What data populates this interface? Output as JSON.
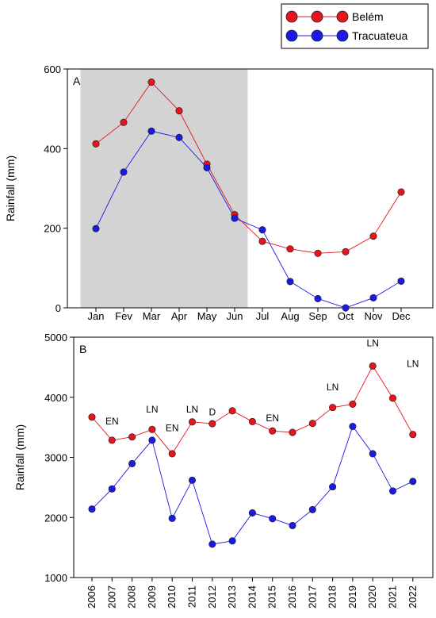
{
  "colors": {
    "belem": "#e8141c",
    "tracuateua": "#1a1ae6",
    "shade": "#d3d3d3"
  },
  "legend": {
    "entries": [
      {
        "name": "Belém",
        "color": "#e8141c"
      },
      {
        "name": "Tracuateua",
        "color": "#1a1ae6"
      }
    ]
  },
  "chart_data": [
    {
      "type": "line",
      "panel_label": "A",
      "ylabel": "Rainfall (mm)",
      "ylim": [
        0,
        600
      ],
      "yticks": [
        0,
        200,
        400,
        600
      ],
      "categories": [
        "Jan",
        "Fev",
        "Mar",
        "Apr",
        "May",
        "Jun",
        "Jul",
        "Aug",
        "Sep",
        "Oct",
        "Nov",
        "Dec"
      ],
      "shaded_range": [
        "Jan",
        "Jun"
      ],
      "series": [
        {
          "name": "Belém",
          "color": "#e8141c",
          "values": [
            412,
            466,
            567,
            495,
            361,
            234,
            167,
            148,
            137,
            141,
            180,
            291
          ]
        },
        {
          "name": "Tracuateua",
          "color": "#1a1ae6",
          "values": [
            199,
            341,
            444,
            428,
            352,
            225,
            196,
            66,
            23,
            0,
            25,
            67
          ]
        }
      ]
    },
    {
      "type": "line",
      "panel_label": "B",
      "ylabel": "Rainfall (mm)",
      "ylim": [
        1000,
        5000
      ],
      "yticks": [
        1000,
        2000,
        3000,
        4000,
        5000
      ],
      "categories": [
        "2006",
        "2007",
        "2008",
        "2009",
        "2010",
        "2011",
        "2012",
        "2013",
        "2014",
        "2015",
        "2016",
        "2017",
        "2018",
        "2019",
        "2020",
        "2021",
        "2022"
      ],
      "series": [
        {
          "name": "Belém",
          "color": "#e8141c",
          "values": [
            3670,
            3285,
            3340,
            3465,
            3060,
            3590,
            3560,
            3775,
            3595,
            3440,
            3415,
            3565,
            3830,
            3885,
            4520,
            3985,
            3380
          ]
        },
        {
          "name": "Tracuateua",
          "color": "#1a1ae6",
          "values": [
            2140,
            2475,
            2895,
            3285,
            1985,
            2620,
            1555,
            1610,
            2075,
            1980,
            1865,
            2130,
            2510,
            3515,
            3060,
            2440,
            2600
          ]
        }
      ],
      "annotations": [
        {
          "text": "EN",
          "x": "2007",
          "y": 3545
        },
        {
          "text": "LN",
          "x": "2009",
          "y": 3745
        },
        {
          "text": "EN",
          "x": "2010",
          "y": 3435
        },
        {
          "text": "LN",
          "x": "2011",
          "y": 3745
        },
        {
          "text": "D",
          "x": "2012",
          "y": 3700
        },
        {
          "text": "EN",
          "x": "2015",
          "y": 3600
        },
        {
          "text": "LN",
          "x": "2018",
          "y": 4115
        },
        {
          "text": "LN",
          "x": "2020",
          "y": 4850
        },
        {
          "text": "LN",
          "x": "2022",
          "y": 4505
        }
      ]
    }
  ]
}
